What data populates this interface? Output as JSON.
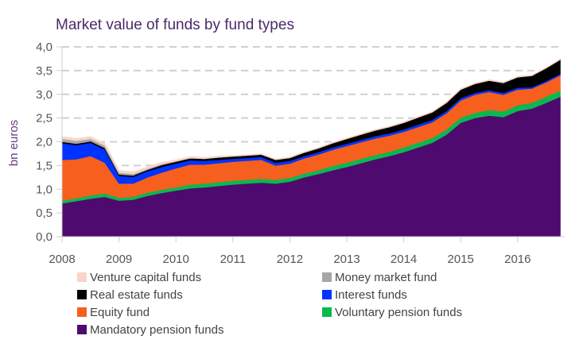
{
  "chart_data": {
    "type": "area",
    "stacked": true,
    "title": "Market value of funds by fund types",
    "xlabel": "",
    "ylabel": "bn euros",
    "ylim": [
      0,
      4.0
    ],
    "xlim": [
      2008,
      2016.75
    ],
    "grid": "horizontal dashed",
    "legend_placement": "bottom",
    "y_ticks": [
      "0,0",
      "0,5",
      "1,0",
      "1,5",
      "2,0",
      "2,5",
      "3,0",
      "3,5",
      "4,0"
    ],
    "x_ticks": [
      "2008",
      "2009",
      "2010",
      "2011",
      "2012",
      "2013",
      "2014",
      "2015",
      "2016"
    ],
    "x": [
      2008,
      2008.25,
      2008.5,
      2008.75,
      2009,
      2009.25,
      2009.5,
      2009.75,
      2010,
      2010.25,
      2010.5,
      2010.75,
      2011,
      2011.25,
      2011.5,
      2011.75,
      2012,
      2012.25,
      2012.5,
      2012.75,
      2013,
      2013.25,
      2013.5,
      2013.75,
      2014,
      2014.25,
      2014.5,
      2014.75,
      2015,
      2015.25,
      2015.5,
      2015.75,
      2016,
      2016.25,
      2016.5,
      2016.75
    ],
    "series": [
      {
        "name": "Mandatory pension funds",
        "color": "#4e0a6e",
        "values": [
          0.7,
          0.75,
          0.8,
          0.84,
          0.76,
          0.78,
          0.86,
          0.92,
          0.97,
          1.02,
          1.04,
          1.07,
          1.1,
          1.12,
          1.14,
          1.12,
          1.16,
          1.25,
          1.32,
          1.4,
          1.47,
          1.55,
          1.63,
          1.7,
          1.78,
          1.88,
          1.98,
          2.15,
          2.4,
          2.5,
          2.55,
          2.52,
          2.65,
          2.7,
          2.82,
          2.95
        ]
      },
      {
        "name": "Voluntary pension funds",
        "color": "#0bb84f",
        "values": [
          0.06,
          0.06,
          0.07,
          0.07,
          0.06,
          0.06,
          0.07,
          0.07,
          0.07,
          0.08,
          0.08,
          0.08,
          0.08,
          0.08,
          0.08,
          0.08,
          0.08,
          0.08,
          0.08,
          0.09,
          0.09,
          0.09,
          0.09,
          0.09,
          0.1,
          0.1,
          0.1,
          0.11,
          0.11,
          0.11,
          0.12,
          0.12,
          0.12,
          0.12,
          0.13,
          0.13
        ]
      },
      {
        "name": "Equity fund",
        "color": "#f75f1e",
        "values": [
          0.86,
          0.82,
          0.83,
          0.65,
          0.3,
          0.28,
          0.32,
          0.36,
          0.4,
          0.42,
          0.4,
          0.4,
          0.4,
          0.4,
          0.4,
          0.3,
          0.3,
          0.32,
          0.33,
          0.34,
          0.35,
          0.35,
          0.35,
          0.34,
          0.33,
          0.33,
          0.33,
          0.34,
          0.36,
          0.38,
          0.38,
          0.35,
          0.33,
          0.3,
          0.3,
          0.32
        ]
      },
      {
        "name": "Interest funds",
        "color": "#0033ff",
        "values": [
          0.35,
          0.3,
          0.28,
          0.28,
          0.16,
          0.14,
          0.13,
          0.12,
          0.1,
          0.09,
          0.08,
          0.07,
          0.06,
          0.06,
          0.06,
          0.06,
          0.06,
          0.05,
          0.05,
          0.05,
          0.05,
          0.05,
          0.05,
          0.05,
          0.05,
          0.05,
          0.05,
          0.05,
          0.05,
          0.04,
          0.04,
          0.04,
          0.04,
          0.03,
          0.03,
          0.03
        ]
      },
      {
        "name": "Real estate funds",
        "color": "#000000",
        "values": [
          0.03,
          0.03,
          0.03,
          0.03,
          0.03,
          0.03,
          0.03,
          0.04,
          0.04,
          0.04,
          0.04,
          0.05,
          0.05,
          0.05,
          0.05,
          0.06,
          0.06,
          0.07,
          0.08,
          0.09,
          0.1,
          0.11,
          0.12,
          0.13,
          0.14,
          0.15,
          0.16,
          0.17,
          0.18,
          0.19,
          0.2,
          0.21,
          0.22,
          0.24,
          0.27,
          0.3
        ]
      },
      {
        "name": "Money market fund",
        "color": "#a6a6a6",
        "values": [
          0.06,
          0.06,
          0.05,
          0.05,
          0.04,
          0.03,
          0.02,
          0.02,
          0.01,
          0.01,
          0,
          0,
          0,
          0,
          0,
          0,
          0,
          0,
          0,
          0,
          0,
          0,
          0,
          0,
          0,
          0,
          0,
          0,
          0,
          0,
          0,
          0,
          0,
          0,
          0,
          0
        ]
      },
      {
        "name": "Venture capital funds",
        "color": "#f9d5c9",
        "values": [
          0.05,
          0.05,
          0.05,
          0.05,
          0.05,
          0.05,
          0.04,
          0.04,
          0.03,
          0.03,
          0.03,
          0.03,
          0.02,
          0.02,
          0.02,
          0.02,
          0.02,
          0.02,
          0.02,
          0.02,
          0.02,
          0.02,
          0.02,
          0.02,
          0.02,
          0.02,
          0.02,
          0.02,
          0.02,
          0.02,
          0.02,
          0.02,
          0.02,
          0.02,
          0.02,
          0.02
        ]
      }
    ],
    "legend_order": [
      "Venture capital funds",
      "Money market fund",
      "Real estate funds",
      "Interest funds",
      "Equity fund",
      "Voluntary pension funds",
      "Mandatory pension funds"
    ]
  }
}
